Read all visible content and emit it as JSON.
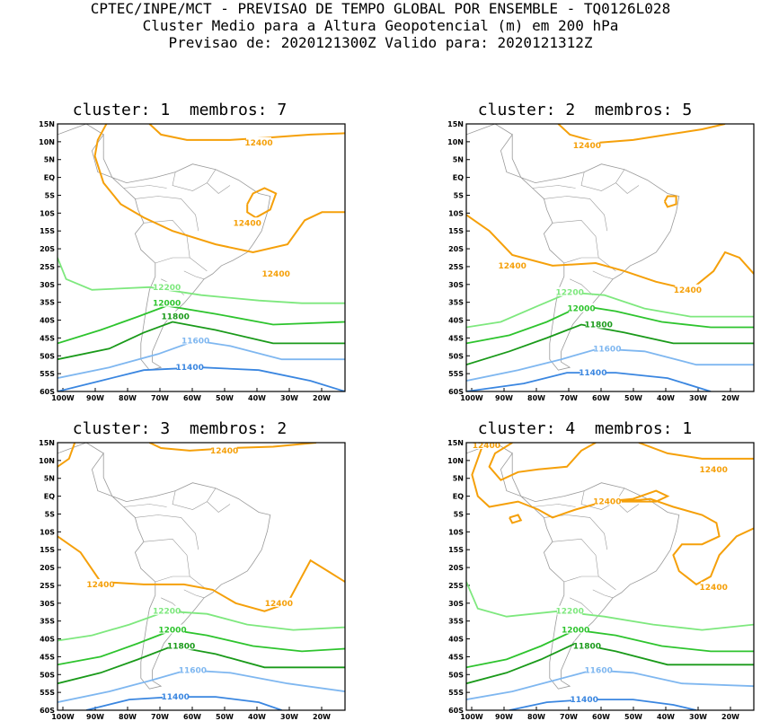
{
  "header": {
    "line1": "CPTEC/INPE/MCT - PREVISAO DE TEMPO GLOBAL POR ENSEMBLE - TQ0126L028",
    "line2": "Cluster Medio para a Altura Geopotencial (m) em 200 hPa",
    "line3": "Previsao de: 2020121300Z    Valido para: 2020121312Z"
  },
  "axes": {
    "lat_labels": [
      "15N",
      "10N",
      "5N",
      "EQ",
      "5S",
      "10S",
      "15S",
      "20S",
      "25S",
      "30S",
      "35S",
      "40S",
      "45S",
      "50S",
      "55S",
      "60S"
    ],
    "lon_labels": [
      "100W",
      "90W",
      "80W",
      "70W",
      "60W",
      "50W",
      "40W",
      "30W",
      "20W"
    ]
  },
  "colors": {
    "c11400": "#3a86e0",
    "c11600": "#7fb7f0",
    "c11800": "#1a9a1a",
    "c12000": "#2ec42e",
    "c12200": "#7ee87e",
    "c12400": "#f5a00a",
    "coast": "#9a9a9a"
  },
  "panels": [
    {
      "title": "cluster: 1  membros: 7",
      "labels": {
        "l12400a": "12400",
        "l12400b": "12400",
        "l12400c": "12400",
        "l12200": "12200",
        "l12000": "12000",
        "l11800": "11800",
        "l11600": "11600",
        "l11400": "11400"
      }
    },
    {
      "title": "cluster: 2  membros: 5",
      "labels": {
        "l12400a": "12400",
        "l12400b": "12400",
        "l12400c": "12400",
        "l12200": "12200",
        "l12000": "12000",
        "l11800": "11800",
        "l11600": "11600",
        "l11400": "11400"
      }
    },
    {
      "title": "cluster: 3  membros: 2",
      "labels": {
        "l12400a": "12400",
        "l12400b": "12400",
        "l12400c": "12400",
        "l12200": "12200",
        "l12000": "12000",
        "l11800": "11800",
        "l11600": "11600",
        "l11400": "11400"
      }
    },
    {
      "title": "cluster: 4  membros: 1",
      "labels": {
        "l12400a": "12400",
        "l12400b": "12400",
        "l12400c": "12400",
        "l12400d": "12400",
        "l12200": "12200",
        "l12000": "12000",
        "l11800": "11800",
        "l11600": "11600",
        "l11400": "11400"
      }
    }
  ]
}
